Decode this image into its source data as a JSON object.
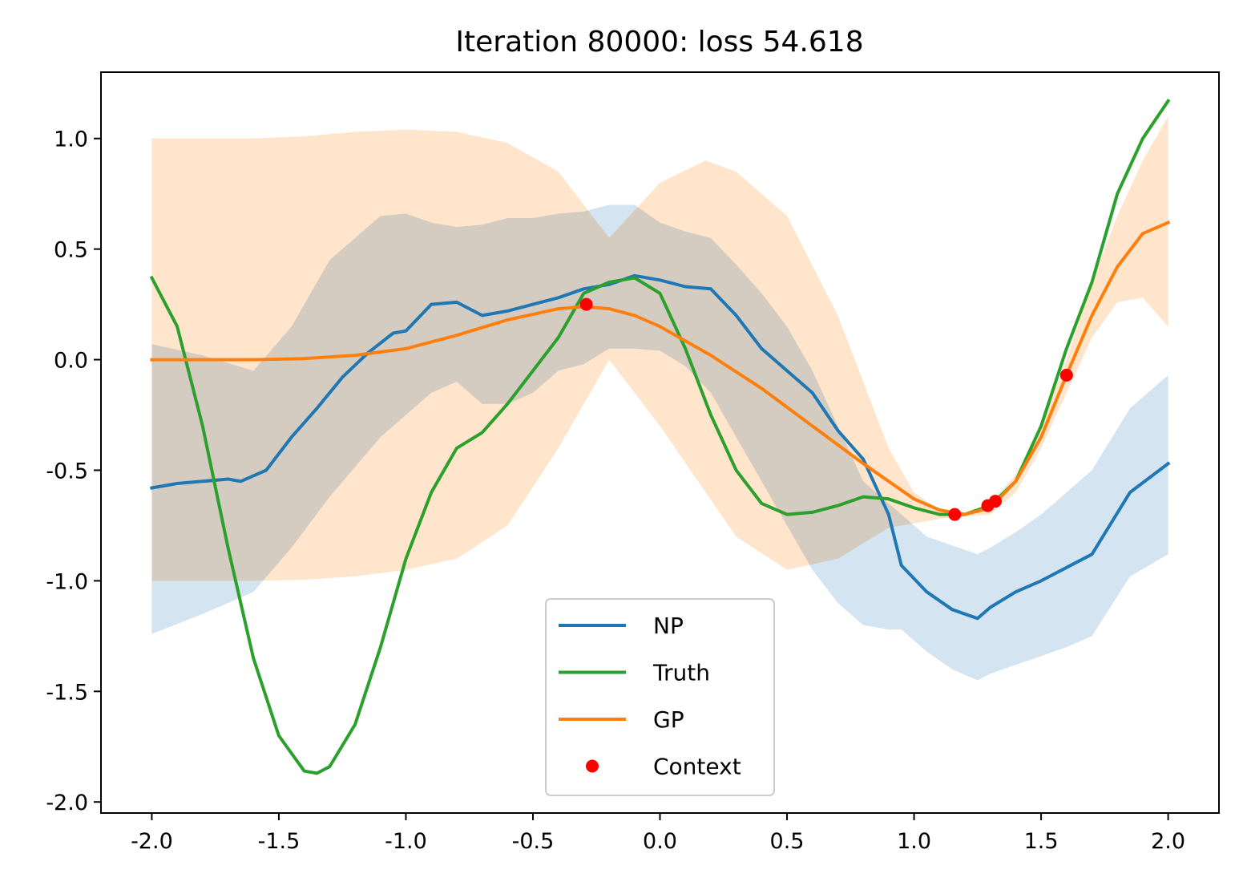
{
  "chart_data": {
    "type": "line",
    "title": "Iteration 80000: loss 54.618",
    "xlabel": "",
    "ylabel": "",
    "xlim": [
      -2.2,
      2.2
    ],
    "ylim": [
      -2.05,
      1.3
    ],
    "xticks": [
      -2.0,
      -1.5,
      -1.0,
      -0.5,
      0.0,
      0.5,
      1.0,
      1.5,
      2.0
    ],
    "xtick_labels": [
      "-2.0",
      "-1.5",
      "-1.0",
      "-0.5",
      "0.0",
      "0.5",
      "1.0",
      "1.5",
      "2.0"
    ],
    "yticks": [
      1.0,
      0.5,
      0.0,
      -0.5,
      -1.0,
      -1.5,
      -2.0
    ],
    "ytick_labels": [
      "1.0",
      "0.5",
      "0.0",
      "-0.5",
      "-1.0",
      "-1.5",
      "-2.0"
    ],
    "grid": false,
    "legend_position": "bottom-center",
    "colors": {
      "np": "#1f77b4",
      "truth": "#2ca02c",
      "gp": "#ff7f0e",
      "context": "#ff0000"
    },
    "series": [
      {
        "name": "NP",
        "kind": "line",
        "color": "#1f77b4",
        "x": [
          -2.0,
          -1.9,
          -1.8,
          -1.7,
          -1.65,
          -1.55,
          -1.45,
          -1.35,
          -1.25,
          -1.15,
          -1.05,
          -1.0,
          -0.9,
          -0.8,
          -0.7,
          -0.6,
          -0.5,
          -0.4,
          -0.3,
          -0.2,
          -0.1,
          0.0,
          0.1,
          0.2,
          0.3,
          0.4,
          0.5,
          0.6,
          0.7,
          0.8,
          0.9,
          0.95,
          1.05,
          1.15,
          1.25,
          1.3,
          1.4,
          1.5,
          1.6,
          1.7,
          1.85,
          2.0
        ],
        "y": [
          -0.58,
          -0.56,
          -0.55,
          -0.54,
          -0.55,
          -0.5,
          -0.35,
          -0.22,
          -0.08,
          0.03,
          0.12,
          0.13,
          0.25,
          0.26,
          0.2,
          0.22,
          0.25,
          0.28,
          0.32,
          0.34,
          0.38,
          0.36,
          0.33,
          0.32,
          0.2,
          0.05,
          -0.05,
          -0.15,
          -0.32,
          -0.45,
          -0.7,
          -0.93,
          -1.05,
          -1.13,
          -1.17,
          -1.12,
          -1.05,
          -1.0,
          -0.94,
          -0.88,
          -0.6,
          -0.47
        ]
      },
      {
        "name": "Truth",
        "kind": "line",
        "color": "#2ca02c",
        "x": [
          -2.0,
          -1.9,
          -1.8,
          -1.7,
          -1.6,
          -1.5,
          -1.4,
          -1.35,
          -1.3,
          -1.2,
          -1.1,
          -1.0,
          -0.9,
          -0.8,
          -0.7,
          -0.6,
          -0.5,
          -0.4,
          -0.3,
          -0.2,
          -0.1,
          0.0,
          0.1,
          0.2,
          0.3,
          0.4,
          0.5,
          0.6,
          0.7,
          0.8,
          0.9,
          1.0,
          1.1,
          1.2,
          1.3,
          1.4,
          1.5,
          1.6,
          1.7,
          1.8,
          1.9,
          2.0
        ],
        "y": [
          0.37,
          0.15,
          -0.3,
          -0.85,
          -1.35,
          -1.7,
          -1.86,
          -1.87,
          -1.84,
          -1.65,
          -1.3,
          -0.9,
          -0.6,
          -0.4,
          -0.33,
          -0.2,
          -0.05,
          0.1,
          0.3,
          0.35,
          0.37,
          0.3,
          0.05,
          -0.25,
          -0.5,
          -0.65,
          -0.7,
          -0.69,
          -0.66,
          -0.62,
          -0.63,
          -0.67,
          -0.7,
          -0.7,
          -0.66,
          -0.55,
          -0.3,
          0.05,
          0.35,
          0.75,
          1.0,
          1.17
        ]
      },
      {
        "name": "GP",
        "kind": "line",
        "color": "#ff7f0e",
        "x": [
          -2.0,
          -1.8,
          -1.6,
          -1.4,
          -1.2,
          -1.0,
          -0.8,
          -0.6,
          -0.4,
          -0.3,
          -0.2,
          -0.1,
          0.0,
          0.2,
          0.4,
          0.6,
          0.8,
          1.0,
          1.1,
          1.2,
          1.3,
          1.4,
          1.5,
          1.6,
          1.7,
          1.8,
          1.9,
          2.0
        ],
        "y": [
          0.0,
          0.0,
          0.0,
          0.005,
          0.02,
          0.05,
          0.11,
          0.18,
          0.23,
          0.24,
          0.23,
          0.2,
          0.15,
          0.02,
          -0.13,
          -0.3,
          -0.47,
          -0.63,
          -0.68,
          -0.7,
          -0.67,
          -0.55,
          -0.35,
          -0.07,
          0.2,
          0.42,
          0.57,
          0.62
        ]
      },
      {
        "name": "Context",
        "kind": "scatter",
        "color": "#ff0000",
        "x": [
          -0.29,
          1.16,
          1.29,
          1.32,
          1.6
        ],
        "y": [
          0.25,
          -0.7,
          -0.66,
          -0.64,
          -0.07
        ]
      }
    ],
    "bands": [
      {
        "of": "GP",
        "color": "#ffe5cc",
        "x": [
          -2.0,
          -1.6,
          -1.4,
          -1.2,
          -1.0,
          -0.8,
          -0.6,
          -0.4,
          -0.2,
          0.0,
          0.18,
          0.3,
          0.5,
          0.7,
          0.9,
          1.0,
          1.1,
          1.2,
          1.3,
          1.4,
          1.5,
          1.6,
          1.7,
          1.8,
          1.9,
          2.0
        ],
        "upper": [
          1.0,
          1.0,
          1.01,
          1.03,
          1.04,
          1.03,
          0.98,
          0.85,
          0.55,
          0.8,
          0.9,
          0.85,
          0.65,
          0.2,
          -0.4,
          -0.6,
          -0.68,
          -0.69,
          -0.65,
          -0.52,
          -0.3,
          0.0,
          0.35,
          0.65,
          0.9,
          1.1
        ],
        "lower": [
          -1.0,
          -1.0,
          -0.995,
          -0.98,
          -0.95,
          -0.9,
          -0.75,
          -0.4,
          0.0,
          -0.3,
          -0.6,
          -0.8,
          -0.95,
          -0.9,
          -0.76,
          -0.74,
          -0.72,
          -0.71,
          -0.7,
          -0.6,
          -0.4,
          -0.15,
          0.1,
          0.26,
          0.28,
          0.15
        ]
      },
      {
        "of": "NP",
        "color": "#cfe1ef",
        "x": [
          -2.0,
          -1.8,
          -1.6,
          -1.45,
          -1.3,
          -1.1,
          -1.0,
          -0.9,
          -0.8,
          -0.7,
          -0.6,
          -0.5,
          -0.4,
          -0.3,
          -0.2,
          -0.1,
          0.0,
          0.1,
          0.2,
          0.3,
          0.4,
          0.5,
          0.6,
          0.7,
          0.8,
          0.9,
          0.95,
          1.05,
          1.15,
          1.25,
          1.3,
          1.4,
          1.5,
          1.6,
          1.7,
          1.85,
          2.0
        ],
        "upper": [
          0.07,
          0.02,
          -0.05,
          0.15,
          0.45,
          0.65,
          0.66,
          0.62,
          0.6,
          0.61,
          0.64,
          0.64,
          0.66,
          0.67,
          0.7,
          0.7,
          0.62,
          0.58,
          0.55,
          0.43,
          0.3,
          0.15,
          -0.05,
          -0.3,
          -0.55,
          -0.65,
          -0.7,
          -0.8,
          -0.84,
          -0.88,
          -0.85,
          -0.78,
          -0.7,
          -0.6,
          -0.5,
          -0.22,
          -0.07
        ],
        "lower": [
          -1.24,
          -1.15,
          -1.05,
          -0.85,
          -0.62,
          -0.35,
          -0.25,
          -0.15,
          -0.1,
          -0.2,
          -0.2,
          -0.15,
          -0.05,
          -0.02,
          0.05,
          0.05,
          0.04,
          -0.03,
          -0.15,
          -0.35,
          -0.55,
          -0.75,
          -0.95,
          -1.1,
          -1.2,
          -1.22,
          -1.22,
          -1.32,
          -1.4,
          -1.45,
          -1.42,
          -1.38,
          -1.34,
          -1.3,
          -1.25,
          -0.98,
          -0.88
        ]
      }
    ],
    "legend": [
      {
        "label": "NP",
        "kind": "line",
        "color": "#1f77b4"
      },
      {
        "label": "Truth",
        "kind": "line",
        "color": "#2ca02c"
      },
      {
        "label": "GP",
        "kind": "line",
        "color": "#ff7f0e"
      },
      {
        "label": "Context",
        "kind": "marker",
        "color": "#ff0000"
      }
    ]
  }
}
